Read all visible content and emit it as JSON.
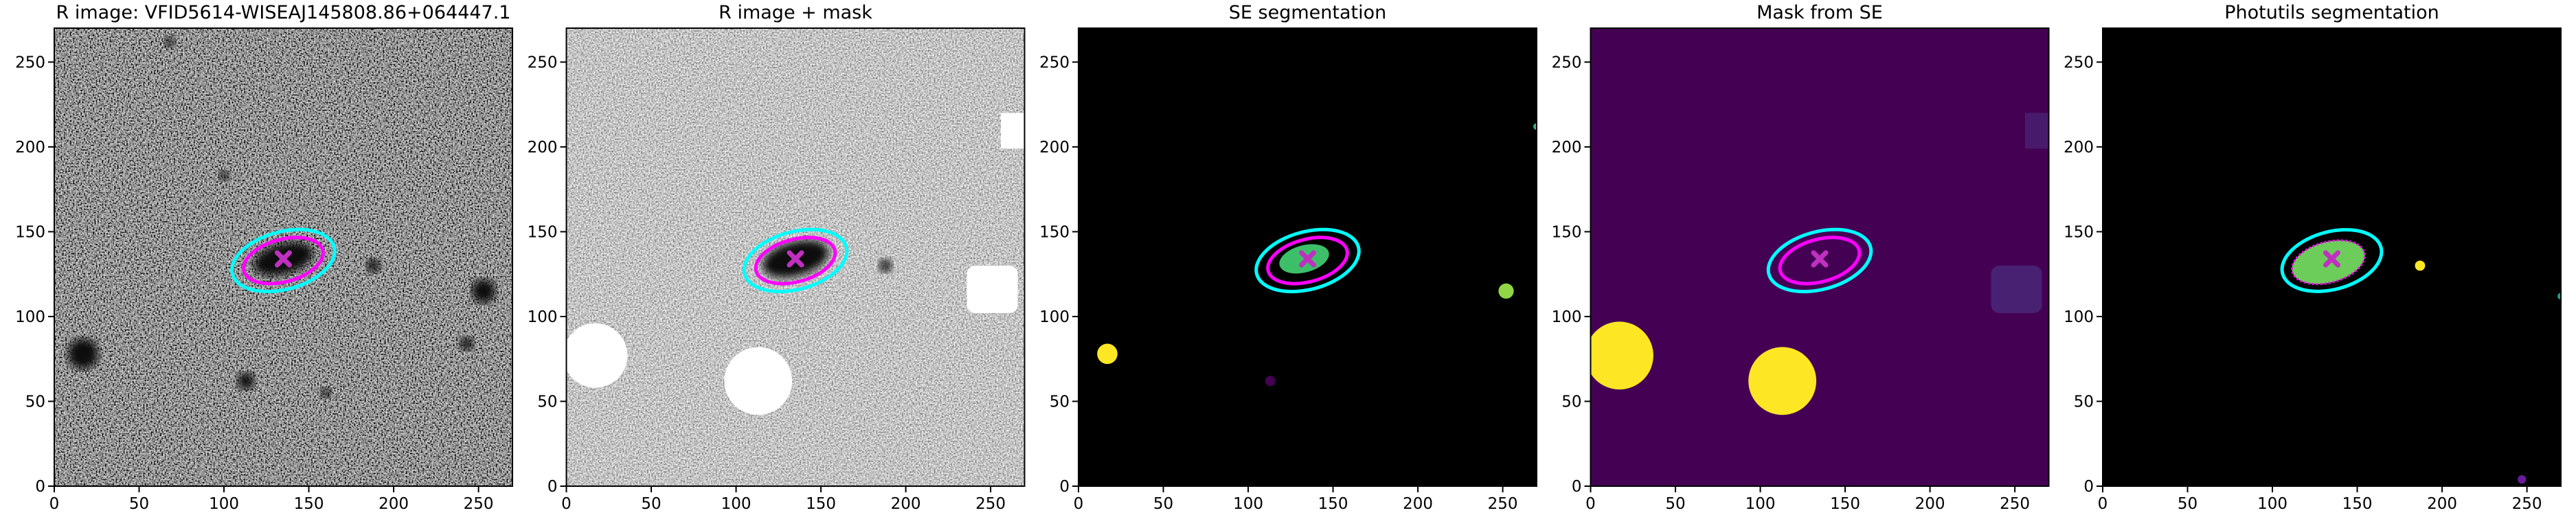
{
  "chart_data": [
    {
      "type": "image",
      "title": "R image: VFID5614-WISEAJ145808.86+064447.1",
      "xlim": [
        0,
        270
      ],
      "ylim": [
        0,
        270
      ],
      "xticks": [
        0,
        50,
        100,
        150,
        200,
        250
      ],
      "yticks": [
        0,
        50,
        100,
        150,
        200,
        250
      ]
    },
    {
      "type": "image",
      "title": "R image + mask",
      "xlim": [
        0,
        270
      ],
      "ylim": [
        0,
        270
      ],
      "xticks": [
        0,
        50,
        100,
        150,
        200,
        250
      ],
      "yticks": [
        0,
        50,
        100,
        150,
        200,
        250
      ]
    },
    {
      "type": "image",
      "title": "SE segmentation",
      "xlim": [
        0,
        270
      ],
      "ylim": [
        0,
        270
      ],
      "xticks": [
        0,
        50,
        100,
        150,
        200,
        250
      ],
      "yticks": [
        0,
        50,
        100,
        150,
        200,
        250
      ]
    },
    {
      "type": "image",
      "title": "Mask from SE",
      "xlim": [
        0,
        270
      ],
      "ylim": [
        0,
        270
      ],
      "xticks": [
        0,
        50,
        100,
        150,
        200,
        250
      ],
      "yticks": [
        0,
        50,
        100,
        150,
        200,
        250
      ]
    },
    {
      "type": "image",
      "title": "Photutils segmentation",
      "xlim": [
        0,
        270
      ],
      "ylim": [
        0,
        270
      ],
      "xticks": [
        0,
        50,
        100,
        150,
        200,
        250
      ],
      "yticks": [
        0,
        50,
        100,
        150,
        200,
        250
      ]
    }
  ]
}
